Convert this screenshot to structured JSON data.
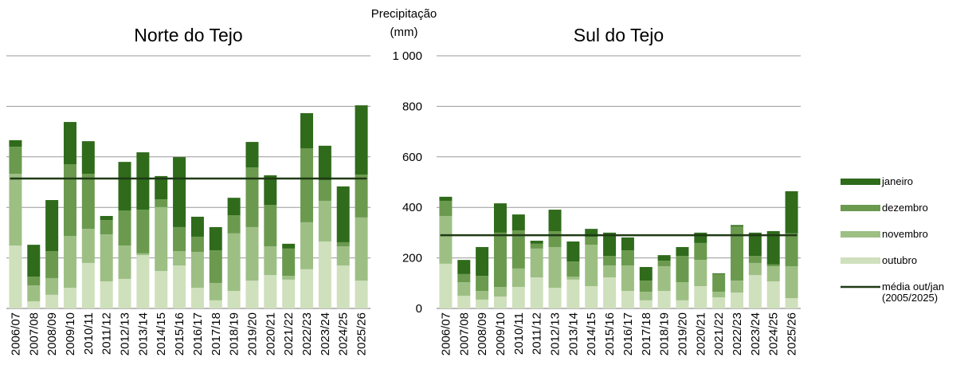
{
  "chart_data": {
    "type": "stacked_bar",
    "y_label": [
      "Precipitação",
      "(mm)"
    ],
    "ylim": [
      0,
      1000
    ],
    "yticks": [
      0,
      200,
      400,
      600,
      800,
      {
        "value": 1000,
        "label": "1 000"
      }
    ],
    "grid": true,
    "categories": [
      "2006/07",
      "2007/08",
      "2008/09",
      "2009/10",
      "2010/11",
      "2011/12",
      "2012/13",
      "2013/14",
      "2014/15",
      "2015/16",
      "2016/17",
      "2017/18",
      "2018/19",
      "2019/20",
      "2020/21",
      "2021/22",
      "2022/23",
      "2023/24",
      "2024/25",
      "2025/26"
    ],
    "series": [
      {
        "name": "outubro",
        "color": "#cfe0bc"
      },
      {
        "name": "novembro",
        "color": "#9dbf84"
      },
      {
        "name": "dezembro",
        "color": "#6b9a4f"
      },
      {
        "name": "janeiro",
        "color": "#2f6b1b"
      }
    ],
    "mean_line": {
      "name": "média out/jan (2005/2025)",
      "color": "#1f3a15"
    },
    "panels": [
      {
        "title": "Norte do Tejo",
        "series_values": [
          [
            249,
            28,
            54,
            82,
            180,
            107,
            117,
            211,
            148,
            170,
            82,
            32,
            69,
            110,
            132,
            114,
            155,
            265,
            170,
            110
          ],
          [
            284,
            63,
            66,
            205,
            135,
            186,
            132,
            7,
            253,
            57,
            142,
            69,
            228,
            212,
            114,
            15,
            186,
            161,
            76,
            250
          ],
          [
            107,
            35,
            107,
            284,
            218,
            57,
            139,
            173,
            31,
            95,
            60,
            129,
            72,
            236,
            164,
            108,
            293,
            82,
            16,
            170
          ],
          [
            26,
            126,
            202,
            167,
            129,
            16,
            192,
            227,
            92,
            277,
            79,
            92,
            69,
            101,
            117,
            19,
            139,
            136,
            221,
            274
          ]
        ],
        "mean_value": 514
      },
      {
        "title": "Sul do Tejo",
        "series_values": [
          [
            177,
            50,
            35,
            47,
            85,
            123,
            82,
            114,
            88,
            123,
            69,
            32,
            69,
            32,
            88,
            44,
            63,
            132,
            107,
            41
          ],
          [
            189,
            54,
            34,
            38,
            73,
            114,
            161,
            12,
            164,
            47,
            101,
            34,
            98,
            72,
            104,
            22,
            47,
            48,
            60,
            126
          ],
          [
            60,
            32,
            60,
            215,
            151,
            19,
            63,
            60,
            32,
            38,
            60,
            44,
            22,
            104,
            67,
            70,
            215,
            28,
            7,
            130
          ],
          [
            16,
            56,
            114,
            116,
            63,
            12,
            85,
            79,
            31,
            92,
            51,
            54,
            22,
            35,
            41,
            3,
            5,
            92,
            132,
            167
          ]
        ],
        "mean_value": 290
      }
    ]
  }
}
